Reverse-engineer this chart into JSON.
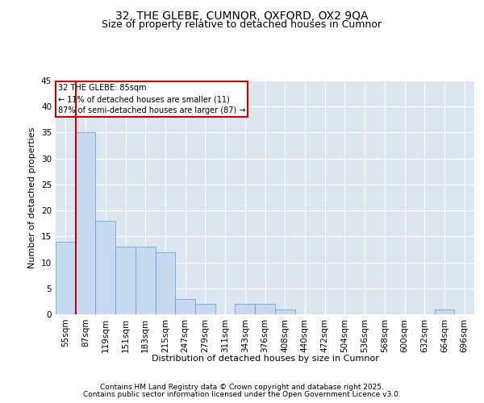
{
  "title1": "32, THE GLEBE, CUMNOR, OXFORD, OX2 9QA",
  "title2": "Size of property relative to detached houses in Cumnor",
  "xlabel": "Distribution of detached houses by size in Cumnor",
  "ylabel": "Number of detached properties",
  "footer1": "Contains HM Land Registry data © Crown copyright and database right 2025.",
  "footer2": "Contains public sector information licensed under the Open Government Licence v3.0.",
  "categories": [
    "55sqm",
    "87sqm",
    "119sqm",
    "151sqm",
    "183sqm",
    "215sqm",
    "247sqm",
    "279sqm",
    "311sqm",
    "343sqm",
    "376sqm",
    "408sqm",
    "440sqm",
    "472sqm",
    "504sqm",
    "536sqm",
    "568sqm",
    "600sqm",
    "632sqm",
    "664sqm",
    "696sqm"
  ],
  "values": [
    14,
    35,
    18,
    13,
    13,
    12,
    3,
    2,
    0,
    2,
    2,
    1,
    0,
    0,
    0,
    0,
    0,
    0,
    0,
    1,
    0
  ],
  "bar_color": "#c5d9f1",
  "bar_edge_color": "#6699cc",
  "highlight_line_color": "#cc0000",
  "annotation_text": "32 THE GLEBE: 85sqm\n← 11% of detached houses are smaller (11)\n87% of semi-detached houses are larger (87) →",
  "annotation_box_color": "#ffffff",
  "annotation_box_edge": "#cc0000",
  "ylim": [
    0,
    45
  ],
  "yticks": [
    0,
    5,
    10,
    15,
    20,
    25,
    30,
    35,
    40,
    45
  ],
  "background_color": "#ffffff",
  "plot_background_color": "#dce6f1",
  "grid_color": "#ffffff",
  "title_fontsize": 10,
  "subtitle_fontsize": 9,
  "axis_label_fontsize": 8,
  "tick_fontsize": 7.5,
  "footer_fontsize": 6.5
}
